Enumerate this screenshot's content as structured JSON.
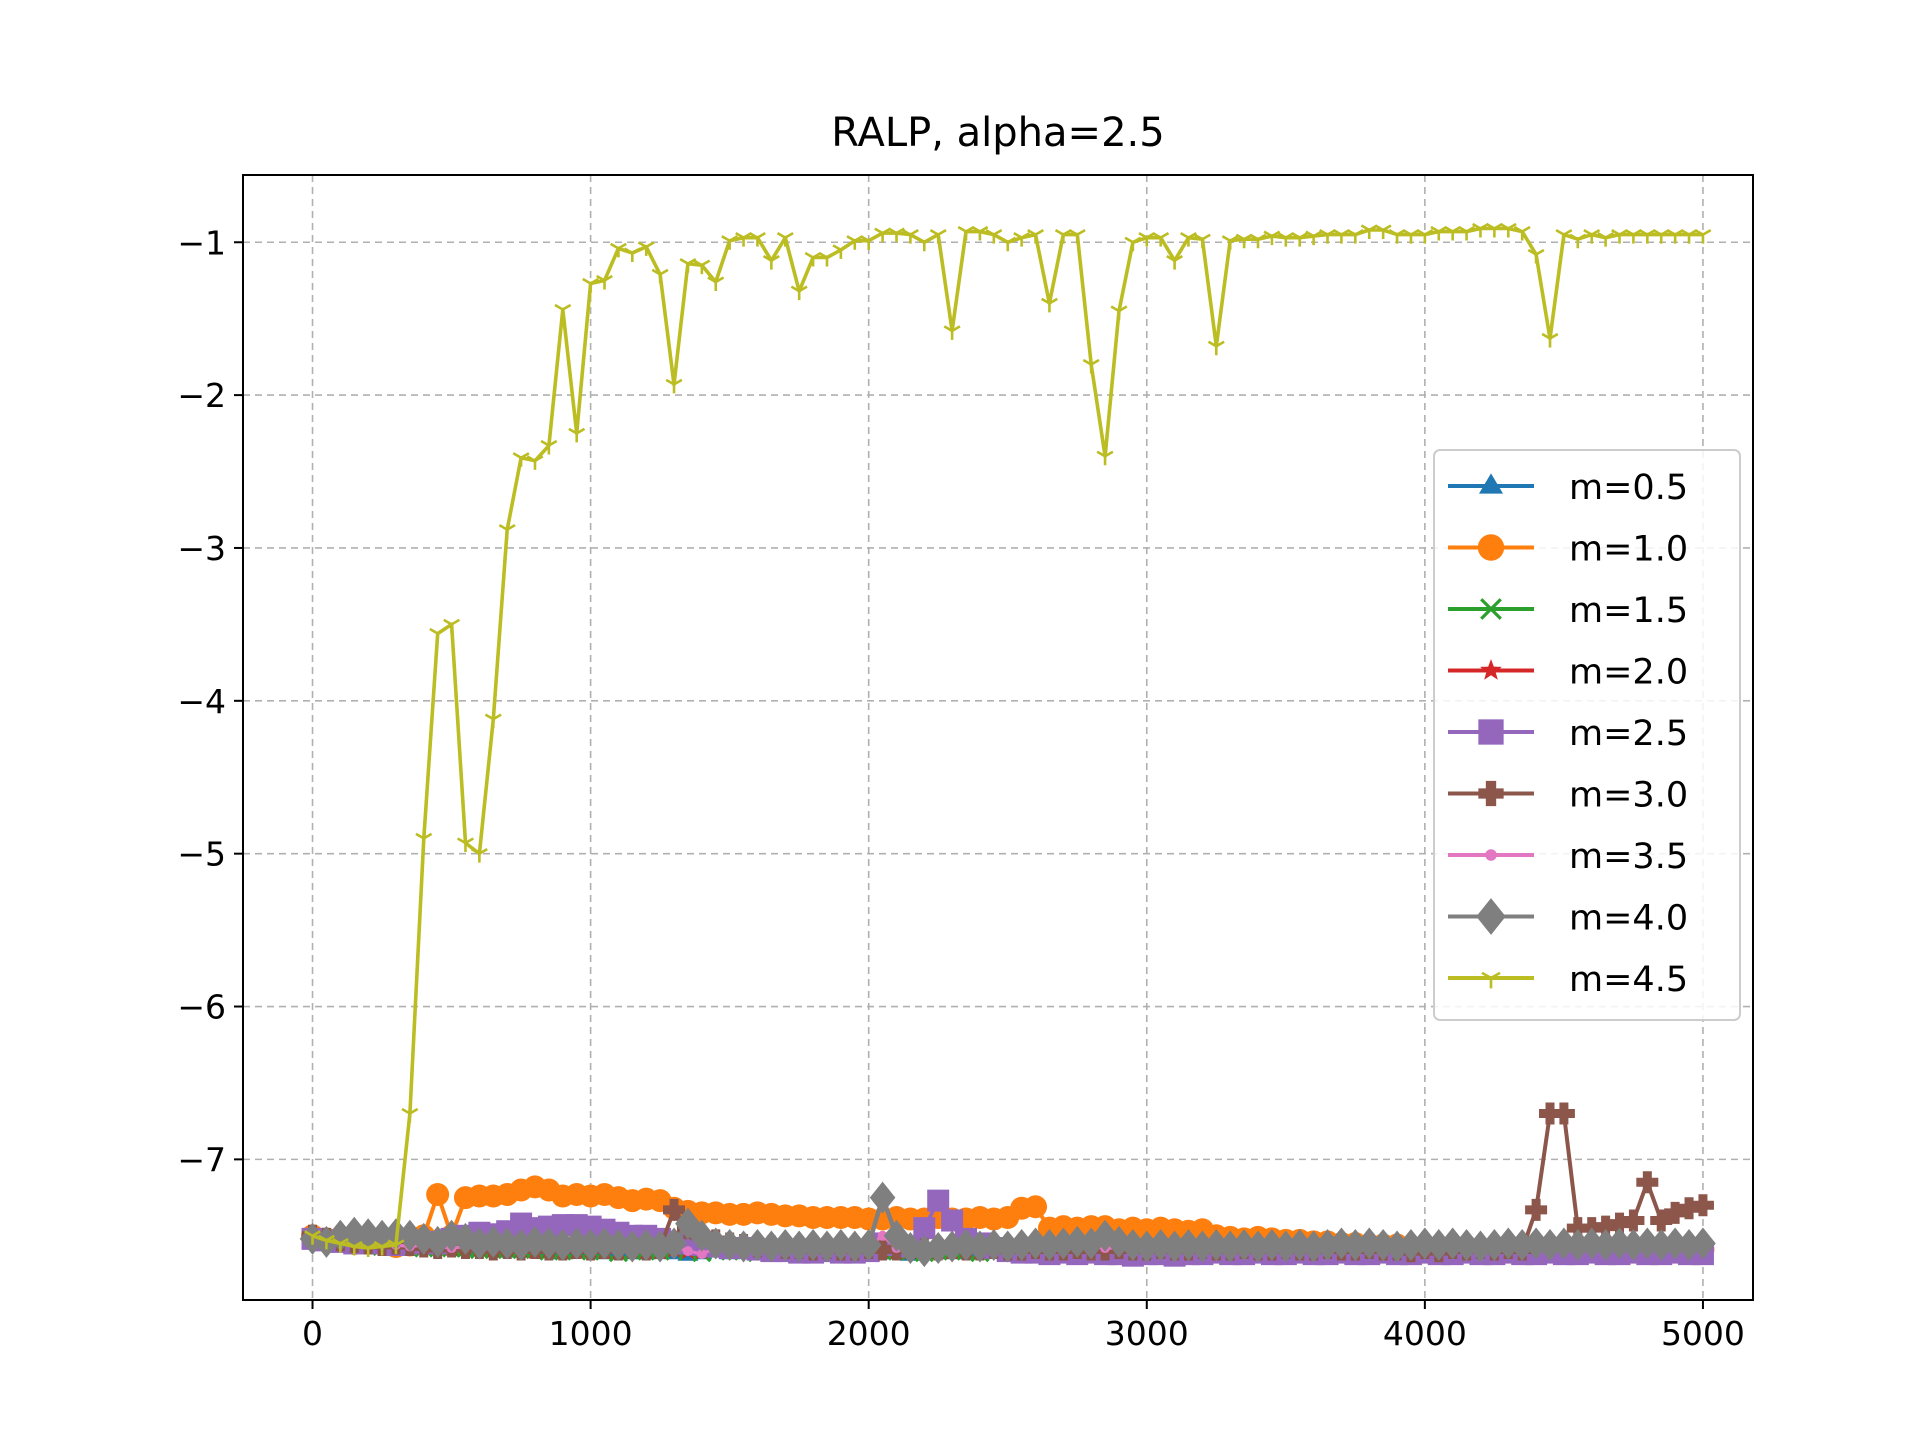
{
  "chart_data": {
    "type": "line",
    "title": "RALP, alpha=2.5",
    "xlabel": "",
    "ylabel": "",
    "xlim": [
      -250,
      5180
    ],
    "ylim": [
      -7.92,
      -0.56
    ],
    "xticks": [
      0,
      1000,
      2000,
      3000,
      4000,
      5000
    ],
    "xtick_labels": [
      "0",
      "1000",
      "2000",
      "3000",
      "4000",
      "5000"
    ],
    "yticks": [
      -1,
      -2,
      -3,
      -4,
      -5,
      -6,
      -7
    ],
    "ytick_labels": [
      "−1",
      "−2",
      "−3",
      "−4",
      "−5",
      "−6",
      "−7"
    ],
    "grid": true,
    "legend": "center-right",
    "x": [
      0,
      50,
      100,
      150,
      200,
      250,
      300,
      350,
      400,
      450,
      500,
      550,
      600,
      650,
      700,
      750,
      800,
      850,
      900,
      950,
      1000,
      1050,
      1100,
      1150,
      1200,
      1250,
      1300,
      1350,
      1400,
      1450,
      1500,
      1550,
      1600,
      1650,
      1700,
      1750,
      1800,
      1850,
      1900,
      1950,
      2000,
      2050,
      2100,
      2150,
      2200,
      2250,
      2300,
      2350,
      2400,
      2450,
      2500,
      2550,
      2600,
      2650,
      2700,
      2750,
      2800,
      2850,
      2900,
      2950,
      3000,
      3050,
      3100,
      3150,
      3200,
      3250,
      3300,
      3350,
      3400,
      3450,
      3500,
      3550,
      3600,
      3650,
      3700,
      3750,
      3800,
      3850,
      3900,
      3950,
      4000,
      4050,
      4100,
      4150,
      4200,
      4250,
      4300,
      4350,
      4400,
      4450,
      4500,
      4550,
      4600,
      4650,
      4700,
      4750,
      4800,
      4850,
      4900,
      4950,
      5000
    ],
    "series": [
      {
        "name": "m=0.5",
        "color": "#1f77b4",
        "marker": "triangle",
        "values": [
          -7.52,
          -7.54,
          -7.55,
          -7.56,
          -7.55,
          -7.56,
          -7.57,
          -7.56,
          -7.58,
          -7.57,
          -7.58,
          -7.59,
          -7.58,
          -7.59,
          -7.6,
          -7.59,
          -7.6,
          -7.6,
          -7.61,
          -7.6,
          -7.6,
          -7.61,
          -7.6,
          -7.61,
          -7.61,
          -7.6,
          -7.61,
          -7.62,
          -7.61,
          -7.6,
          -7.61,
          -7.6,
          -7.61,
          -7.62,
          -7.61,
          -7.6,
          -7.61,
          -7.6,
          -7.61,
          -7.6,
          -7.61,
          -7.6,
          -7.61,
          -7.62,
          -7.61,
          -7.6,
          -7.61,
          -7.6,
          -7.61,
          -7.6,
          -7.61,
          -7.6,
          -7.61,
          -7.6,
          -7.61,
          -7.6,
          -7.61,
          -7.6,
          -7.61,
          -7.62,
          -7.61,
          -7.6,
          -7.61,
          -7.6,
          -7.61,
          -7.6,
          -7.61,
          -7.6,
          -7.61,
          -7.6,
          -7.61,
          -7.6,
          -7.61,
          -7.6,
          -7.61,
          -7.62,
          -7.61,
          -7.6,
          -7.61,
          -7.6,
          -7.61,
          -7.6,
          -7.61,
          -7.6,
          -7.61,
          -7.6,
          -7.61,
          -7.6,
          -7.61,
          -7.6,
          -7.61,
          -7.62,
          -7.61,
          -7.6,
          -7.61,
          -7.6,
          -7.61,
          -7.6,
          -7.61,
          -7.6,
          -7.61
        ]
      },
      {
        "name": "m=1.0",
        "color": "#ff7f0e",
        "marker": "circle",
        "values": [
          -7.5,
          -7.52,
          -7.53,
          -7.55,
          -7.54,
          -7.55,
          -7.57,
          -7.56,
          -7.5,
          -7.23,
          -7.5,
          -7.25,
          -7.24,
          -7.24,
          -7.23,
          -7.2,
          -7.18,
          -7.2,
          -7.24,
          -7.23,
          -7.24,
          -7.23,
          -7.25,
          -7.27,
          -7.26,
          -7.27,
          -7.32,
          -7.34,
          -7.35,
          -7.35,
          -7.36,
          -7.36,
          -7.35,
          -7.36,
          -7.37,
          -7.37,
          -7.38,
          -7.38,
          -7.38,
          -7.38,
          -7.39,
          -7.39,
          -7.38,
          -7.39,
          -7.39,
          -7.38,
          -7.39,
          -7.39,
          -7.38,
          -7.39,
          -7.38,
          -7.32,
          -7.31,
          -7.45,
          -7.44,
          -7.45,
          -7.44,
          -7.44,
          -7.46,
          -7.45,
          -7.46,
          -7.45,
          -7.46,
          -7.47,
          -7.46,
          -7.5,
          -7.51,
          -7.52,
          -7.51,
          -7.52,
          -7.53,
          -7.53,
          -7.54,
          -7.54,
          -7.55,
          -7.55,
          -7.56,
          -7.56,
          -7.56,
          -7.57,
          -7.57,
          -7.58,
          -7.58,
          -7.58,
          -7.59,
          -7.59,
          -7.59,
          -7.58,
          -7.59,
          -7.59,
          -7.59,
          -7.58,
          -7.59,
          -7.59,
          -7.59,
          -7.58,
          -7.59,
          -7.59,
          -7.58,
          -7.59,
          -7.59
        ]
      },
      {
        "name": "m=1.5",
        "color": "#2ca02c",
        "marker": "x",
        "values": [
          -7.52,
          -7.53,
          -7.55,
          -7.55,
          -7.56,
          -7.57,
          -7.56,
          -7.57,
          -7.58,
          -7.57,
          -7.58,
          -7.58,
          -7.59,
          -7.58,
          -7.59,
          -7.58,
          -7.59,
          -7.6,
          -7.59,
          -7.6,
          -7.59,
          -7.6,
          -7.61,
          -7.6,
          -7.59,
          -7.6,
          -7.59,
          -7.6,
          -7.61,
          -7.6,
          -7.59,
          -7.6,
          -7.61,
          -7.6,
          -7.59,
          -7.6,
          -7.61,
          -7.6,
          -7.59,
          -7.6,
          -7.61,
          -7.6,
          -7.59,
          -7.6,
          -7.61,
          -7.6,
          -7.59,
          -7.6,
          -7.61,
          -7.6,
          -7.59,
          -7.6,
          -7.61,
          -7.6,
          -7.59,
          -7.6,
          -7.61,
          -7.6,
          -7.59,
          -7.6,
          -7.61,
          -7.6,
          -7.59,
          -7.6,
          -7.61,
          -7.6,
          -7.59,
          -7.6,
          -7.61,
          -7.6,
          -7.59,
          -7.6,
          -7.61,
          -7.6,
          -7.59,
          -7.6,
          -7.61,
          -7.6,
          -7.59,
          -7.6,
          -7.61,
          -7.6,
          -7.59,
          -7.6,
          -7.61,
          -7.6,
          -7.59,
          -7.6,
          -7.61,
          -7.6,
          -7.59,
          -7.6,
          -7.61,
          -7.6,
          -7.59,
          -7.6,
          -7.61,
          -7.6,
          -7.59,
          -7.6,
          -7.61
        ]
      },
      {
        "name": "m=2.0",
        "color": "#d62728",
        "marker": "star",
        "values": [
          -7.51,
          -7.53,
          -7.54,
          -7.55,
          -7.56,
          -7.55,
          -7.56,
          -7.57,
          -7.56,
          -7.57,
          -7.58,
          -7.57,
          -7.58,
          -7.59,
          -7.58,
          -7.59,
          -7.6,
          -7.59,
          -7.6,
          -7.6,
          -7.59,
          -7.6,
          -7.6,
          -7.59,
          -7.6,
          -7.6,
          -7.59,
          -7.6,
          -7.6,
          -7.59,
          -7.6,
          -7.6,
          -7.59,
          -7.6,
          -7.6,
          -7.59,
          -7.6,
          -7.6,
          -7.59,
          -7.6,
          -7.6,
          -7.59,
          -7.6,
          -7.6,
          -7.59,
          -7.6,
          -7.6,
          -7.59,
          -7.6,
          -7.6,
          -7.59,
          -7.6,
          -7.6,
          -7.59,
          -7.6,
          -7.6,
          -7.59,
          -7.6,
          -7.6,
          -7.59,
          -7.6,
          -7.6,
          -7.59,
          -7.6,
          -7.6,
          -7.59,
          -7.6,
          -7.6,
          -7.59,
          -7.6,
          -7.6,
          -7.59,
          -7.6,
          -7.6,
          -7.59,
          -7.6,
          -7.6,
          -7.59,
          -7.6,
          -7.6,
          -7.59,
          -7.6,
          -7.6,
          -7.59,
          -7.6,
          -7.6,
          -7.59,
          -7.6,
          -7.6,
          -7.59,
          -7.6,
          -7.6,
          -7.59,
          -7.6,
          -7.6,
          -7.59,
          -7.6,
          -7.6,
          -7.59,
          -7.6,
          -7.6
        ]
      },
      {
        "name": "m=2.5",
        "color": "#9467bd",
        "marker": "square",
        "values": [
          -7.52,
          -7.53,
          -7.54,
          -7.55,
          -7.54,
          -7.55,
          -7.56,
          -7.55,
          -7.54,
          -7.55,
          -7.52,
          -7.5,
          -7.48,
          -7.49,
          -7.47,
          -7.42,
          -7.45,
          -7.44,
          -7.43,
          -7.43,
          -7.44,
          -7.46,
          -7.48,
          -7.5,
          -7.5,
          -7.52,
          -7.54,
          -7.55,
          -7.56,
          -7.57,
          -7.58,
          -7.58,
          -7.59,
          -7.6,
          -7.6,
          -7.61,
          -7.61,
          -7.6,
          -7.61,
          -7.61,
          -7.6,
          -7.55,
          -7.56,
          -7.57,
          -7.45,
          -7.27,
          -7.4,
          -7.52,
          -7.55,
          -7.58,
          -7.6,
          -7.61,
          -7.61,
          -7.62,
          -7.61,
          -7.62,
          -7.61,
          -7.62,
          -7.62,
          -7.63,
          -7.62,
          -7.62,
          -7.63,
          -7.62,
          -7.62,
          -7.61,
          -7.62,
          -7.62,
          -7.61,
          -7.62,
          -7.62,
          -7.61,
          -7.62,
          -7.62,
          -7.61,
          -7.62,
          -7.62,
          -7.61,
          -7.62,
          -7.62,
          -7.61,
          -7.62,
          -7.62,
          -7.61,
          -7.62,
          -7.62,
          -7.61,
          -7.62,
          -7.62,
          -7.61,
          -7.62,
          -7.62,
          -7.61,
          -7.62,
          -7.62,
          -7.61,
          -7.62,
          -7.62,
          -7.61,
          -7.62,
          -7.62
        ]
      },
      {
        "name": "m=3.0",
        "color": "#8c564b",
        "marker": "plus",
        "values": [
          -7.5,
          -7.52,
          -7.53,
          -7.54,
          -7.55,
          -7.56,
          -7.55,
          -7.56,
          -7.57,
          -7.58,
          -7.57,
          -7.58,
          -7.58,
          -7.59,
          -7.58,
          -7.59,
          -7.58,
          -7.59,
          -7.59,
          -7.58,
          -7.59,
          -7.58,
          -7.59,
          -7.58,
          -7.59,
          -7.58,
          -7.33,
          -7.45,
          -7.5,
          -7.53,
          -7.55,
          -7.56,
          -7.57,
          -7.57,
          -7.58,
          -7.58,
          -7.59,
          -7.58,
          -7.59,
          -7.59,
          -7.58,
          -7.59,
          -7.59,
          -7.58,
          -7.59,
          -7.59,
          -7.58,
          -7.59,
          -7.59,
          -7.58,
          -7.59,
          -7.59,
          -7.58,
          -7.59,
          -7.59,
          -7.58,
          -7.59,
          -7.59,
          -7.58,
          -7.59,
          -7.59,
          -7.58,
          -7.59,
          -7.59,
          -7.58,
          -7.59,
          -7.59,
          -7.58,
          -7.59,
          -7.59,
          -7.58,
          -7.59,
          -7.59,
          -7.58,
          -7.59,
          -7.59,
          -7.58,
          -7.59,
          -7.59,
          -7.6,
          -7.58,
          -7.6,
          -7.58,
          -7.59,
          -7.58,
          -7.59,
          -7.58,
          -7.59,
          -7.33,
          -6.7,
          -6.7,
          -7.45,
          -7.45,
          -7.44,
          -7.42,
          -7.4,
          -7.15,
          -7.4,
          -7.35,
          -7.32,
          -7.3
        ]
      },
      {
        "name": "m=3.5",
        "color": "#e377c2",
        "marker": "point",
        "values": [
          -7.51,
          -7.53,
          -7.54,
          -7.55,
          -7.56,
          -7.55,
          -7.56,
          -7.57,
          -7.56,
          -7.57,
          -7.58,
          -7.57,
          -7.58,
          -7.58,
          -7.57,
          -7.58,
          -7.58,
          -7.57,
          -7.58,
          -7.58,
          -7.57,
          -7.58,
          -7.58,
          -7.57,
          -7.58,
          -7.58,
          -7.57,
          -7.6,
          -7.62,
          -7.58,
          -7.58,
          -7.57,
          -7.58,
          -7.58,
          -7.57,
          -7.58,
          -7.58,
          -7.57,
          -7.58,
          -7.58,
          -7.57,
          -7.5,
          -7.58,
          -7.58,
          -7.57,
          -7.58,
          -7.58,
          -7.57,
          -7.58,
          -7.58,
          -7.57,
          -7.58,
          -7.58,
          -7.57,
          -7.58,
          -7.58,
          -7.57,
          -7.58,
          -7.58,
          -7.57,
          -7.58,
          -7.58,
          -7.57,
          -7.58,
          -7.58,
          -7.57,
          -7.58,
          -7.58,
          -7.57,
          -7.58,
          -7.58,
          -7.57,
          -7.58,
          -7.58,
          -7.57,
          -7.58,
          -7.58,
          -7.57,
          -7.58,
          -7.58,
          -7.57,
          -7.58,
          -7.58,
          -7.57,
          -7.58,
          -7.58,
          -7.57,
          -7.58,
          -7.58,
          -7.57,
          -7.58,
          -7.58,
          -7.57,
          -7.58,
          -7.58,
          -7.57,
          -7.58,
          -7.58,
          -7.57,
          -7.58,
          -7.58
        ]
      },
      {
        "name": "m=4.0",
        "color": "#7f7f7f",
        "marker": "diamond",
        "values": [
          -7.52,
          -7.54,
          -7.5,
          -7.48,
          -7.49,
          -7.5,
          -7.49,
          -7.5,
          -7.52,
          -7.54,
          -7.5,
          -7.52,
          -7.55,
          -7.54,
          -7.55,
          -7.56,
          -7.54,
          -7.55,
          -7.56,
          -7.55,
          -7.56,
          -7.55,
          -7.56,
          -7.57,
          -7.56,
          -7.57,
          -7.55,
          -7.42,
          -7.5,
          -7.55,
          -7.56,
          -7.57,
          -7.56,
          -7.57,
          -7.56,
          -7.57,
          -7.56,
          -7.57,
          -7.56,
          -7.57,
          -7.56,
          -7.25,
          -7.5,
          -7.58,
          -7.6,
          -7.58,
          -7.57,
          -7.56,
          -7.57,
          -7.56,
          -7.57,
          -7.56,
          -7.55,
          -7.56,
          -7.55,
          -7.54,
          -7.55,
          -7.5,
          -7.54,
          -7.56,
          -7.57,
          -7.56,
          -7.57,
          -7.56,
          -7.57,
          -7.56,
          -7.57,
          -7.56,
          -7.57,
          -7.56,
          -7.57,
          -7.56,
          -7.57,
          -7.56,
          -7.55,
          -7.56,
          -7.55,
          -7.56,
          -7.57,
          -7.56,
          -7.55,
          -7.56,
          -7.55,
          -7.56,
          -7.57,
          -7.56,
          -7.55,
          -7.56,
          -7.55,
          -7.56,
          -7.55,
          -7.56,
          -7.55,
          -7.56,
          -7.55,
          -7.56,
          -7.55,
          -7.56,
          -7.55,
          -7.56,
          -7.55
        ]
      },
      {
        "name": "m=4.5",
        "color": "#bcbd22",
        "marker": "tri_down",
        "values": [
          -7.5,
          -7.53,
          -7.55,
          -7.57,
          -7.58,
          -7.57,
          -7.56,
          -6.7,
          -4.9,
          -3.56,
          -3.5,
          -4.93,
          -5.0,
          -4.12,
          -2.88,
          -2.41,
          -2.43,
          -2.33,
          -1.44,
          -2.25,
          -1.27,
          -1.25,
          -1.04,
          -1.07,
          -1.03,
          -1.21,
          -1.93,
          -1.14,
          -1.15,
          -1.26,
          -0.99,
          -0.97,
          -0.97,
          -1.12,
          -0.97,
          -1.32,
          -1.1,
          -1.1,
          -1.05,
          -0.99,
          -0.99,
          -0.94,
          -0.94,
          -0.95,
          -1.0,
          -0.95,
          -1.58,
          -0.93,
          -0.93,
          -0.95,
          -1.0,
          -0.97,
          -0.95,
          -1.4,
          -0.95,
          -0.95,
          -1.8,
          -2.4,
          -1.45,
          -1.0,
          -0.97,
          -0.97,
          -1.12,
          -0.97,
          -0.98,
          -1.68,
          -0.99,
          -0.98,
          -0.98,
          -0.96,
          -0.97,
          -0.97,
          -0.96,
          -0.95,
          -0.95,
          -0.95,
          -0.92,
          -0.92,
          -0.95,
          -0.95,
          -0.95,
          -0.93,
          -0.93,
          -0.93,
          -0.91,
          -0.91,
          -0.91,
          -0.93,
          -1.08,
          -1.63,
          -0.95,
          -0.98,
          -0.95,
          -0.97,
          -0.95,
          -0.95,
          -0.95,
          -0.95,
          -0.95,
          -0.95,
          -0.95
        ]
      }
    ]
  }
}
